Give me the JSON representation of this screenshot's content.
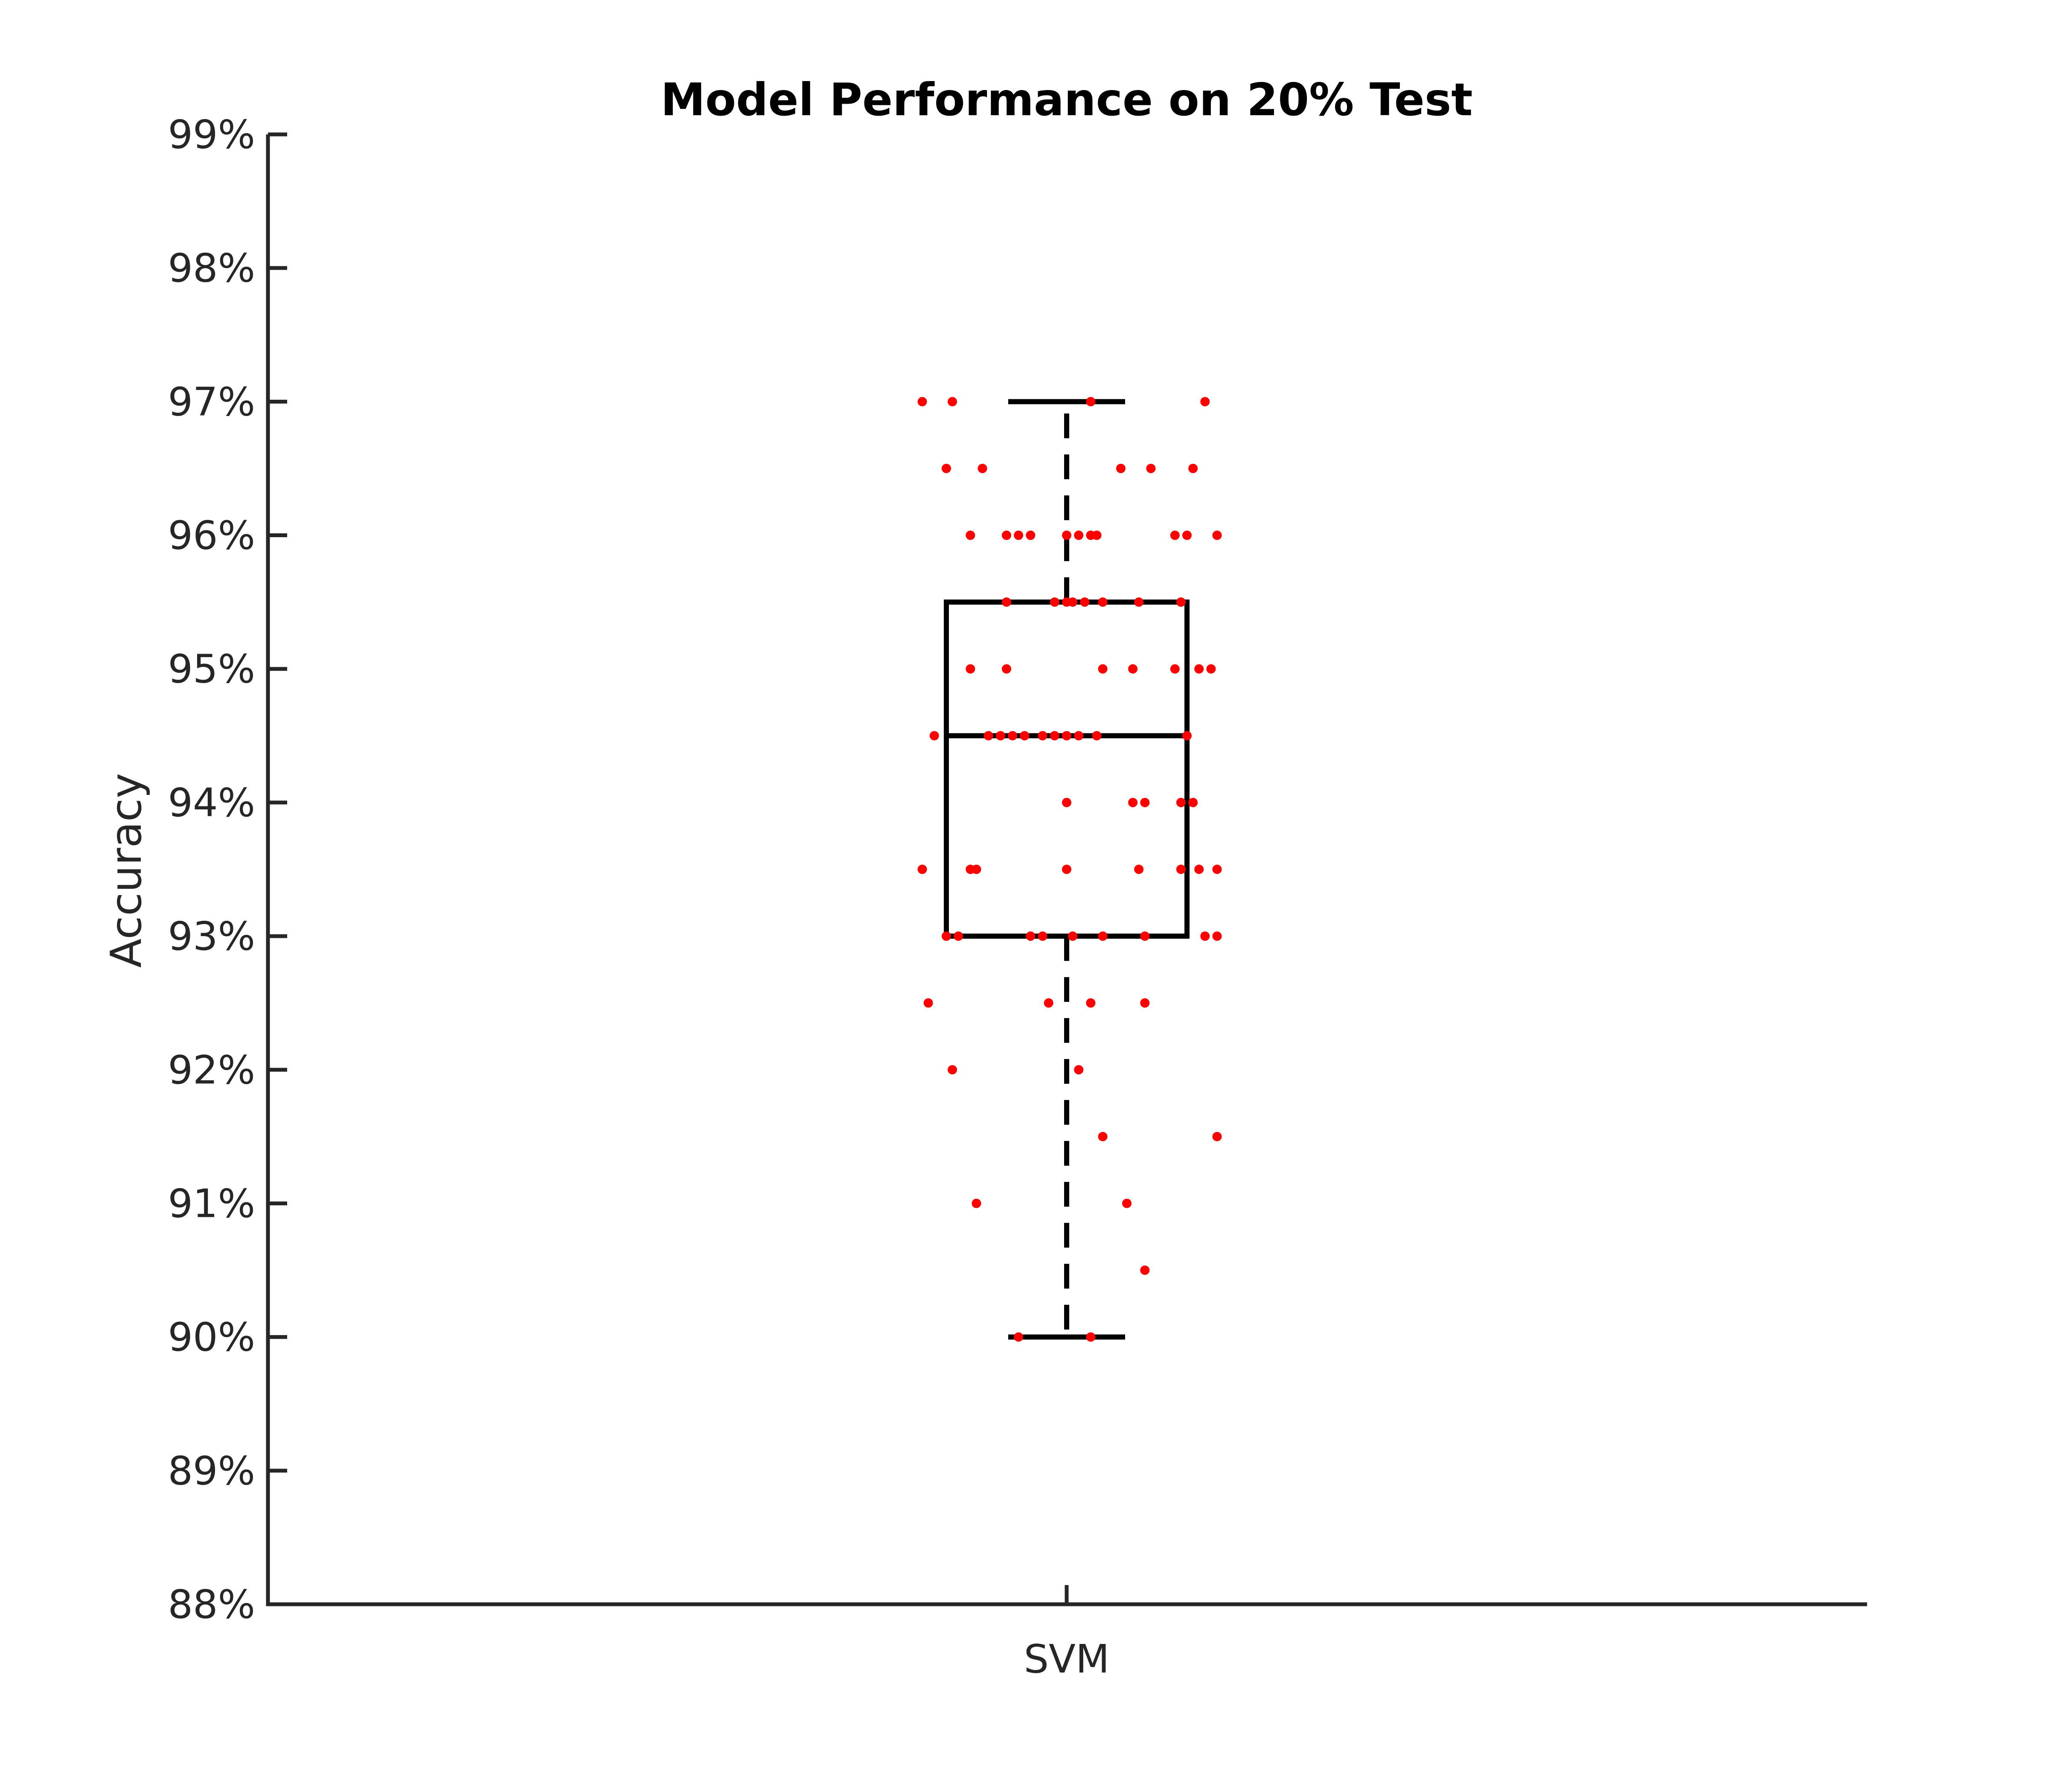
{
  "chart_data": {
    "type": "box",
    "title": "Model Performance on 20% Test",
    "xlabel": "",
    "ylabel": "Accuracy",
    "categories": [
      "SVM"
    ],
    "ylim": [
      88,
      99
    ],
    "yticks": [
      88,
      89,
      90,
      91,
      92,
      93,
      94,
      95,
      96,
      97,
      98,
      99
    ],
    "ytick_labels": [
      "88%",
      "89%",
      "90%",
      "91%",
      "92%",
      "93%",
      "94%",
      "95%",
      "96%",
      "97%",
      "98%",
      "99%"
    ],
    "grid": false,
    "box": {
      "category": "SVM",
      "whisker_low": 90,
      "q1": 93,
      "median": 94.5,
      "q3": 95.5,
      "whisker_high": 97
    },
    "points": [
      {
        "x": -0.12,
        "y": 97
      },
      {
        "x": -0.095,
        "y": 97
      },
      {
        "x": 0.02,
        "y": 97
      },
      {
        "x": 0.115,
        "y": 97
      },
      {
        "x": -0.1,
        "y": 96.5
      },
      {
        "x": -0.07,
        "y": 96.5
      },
      {
        "x": 0.045,
        "y": 96.5
      },
      {
        "x": 0.07,
        "y": 96.5
      },
      {
        "x": 0.105,
        "y": 96.5
      },
      {
        "x": -0.08,
        "y": 96
      },
      {
        "x": -0.05,
        "y": 96
      },
      {
        "x": -0.04,
        "y": 96
      },
      {
        "x": -0.03,
        "y": 96
      },
      {
        "x": 0.0,
        "y": 96
      },
      {
        "x": 0.01,
        "y": 96
      },
      {
        "x": 0.02,
        "y": 96
      },
      {
        "x": 0.025,
        "y": 96
      },
      {
        "x": 0.09,
        "y": 96
      },
      {
        "x": 0.1,
        "y": 96
      },
      {
        "x": 0.125,
        "y": 96
      },
      {
        "x": -0.05,
        "y": 95.5
      },
      {
        "x": -0.01,
        "y": 95.5
      },
      {
        "x": 0.0,
        "y": 95.5
      },
      {
        "x": 0.005,
        "y": 95.5
      },
      {
        "x": 0.015,
        "y": 95.5
      },
      {
        "x": 0.03,
        "y": 95.5
      },
      {
        "x": 0.06,
        "y": 95.5
      },
      {
        "x": 0.095,
        "y": 95.5
      },
      {
        "x": -0.08,
        "y": 95
      },
      {
        "x": -0.05,
        "y": 95
      },
      {
        "x": 0.03,
        "y": 95
      },
      {
        "x": 0.055,
        "y": 95
      },
      {
        "x": 0.09,
        "y": 95
      },
      {
        "x": 0.11,
        "y": 95
      },
      {
        "x": 0.12,
        "y": 95
      },
      {
        "x": -0.11,
        "y": 94.5
      },
      {
        "x": -0.065,
        "y": 94.5
      },
      {
        "x": -0.055,
        "y": 94.5
      },
      {
        "x": -0.045,
        "y": 94.5
      },
      {
        "x": -0.035,
        "y": 94.5
      },
      {
        "x": -0.02,
        "y": 94.5
      },
      {
        "x": -0.01,
        "y": 94.5
      },
      {
        "x": 0.0,
        "y": 94.5
      },
      {
        "x": 0.01,
        "y": 94.5
      },
      {
        "x": 0.025,
        "y": 94.5
      },
      {
        "x": 0.1,
        "y": 94.5
      },
      {
        "x": 0.0,
        "y": 94
      },
      {
        "x": 0.055,
        "y": 94
      },
      {
        "x": 0.065,
        "y": 94
      },
      {
        "x": 0.095,
        "y": 94
      },
      {
        "x": 0.105,
        "y": 94
      },
      {
        "x": -0.12,
        "y": 93.5
      },
      {
        "x": -0.08,
        "y": 93.5
      },
      {
        "x": -0.075,
        "y": 93.5
      },
      {
        "x": 0.0,
        "y": 93.5
      },
      {
        "x": 0.06,
        "y": 93.5
      },
      {
        "x": 0.095,
        "y": 93.5
      },
      {
        "x": 0.11,
        "y": 93.5
      },
      {
        "x": 0.125,
        "y": 93.5
      },
      {
        "x": -0.1,
        "y": 93
      },
      {
        "x": -0.09,
        "y": 93
      },
      {
        "x": -0.03,
        "y": 93
      },
      {
        "x": -0.02,
        "y": 93
      },
      {
        "x": 0.005,
        "y": 93
      },
      {
        "x": 0.03,
        "y": 93
      },
      {
        "x": 0.065,
        "y": 93
      },
      {
        "x": 0.115,
        "y": 93
      },
      {
        "x": 0.125,
        "y": 93
      },
      {
        "x": -0.115,
        "y": 92.5
      },
      {
        "x": -0.015,
        "y": 92.5
      },
      {
        "x": 0.02,
        "y": 92.5
      },
      {
        "x": 0.065,
        "y": 92.5
      },
      {
        "x": -0.095,
        "y": 92
      },
      {
        "x": 0.01,
        "y": 92
      },
      {
        "x": 0.03,
        "y": 91.5
      },
      {
        "x": 0.125,
        "y": 91.5
      },
      {
        "x": -0.075,
        "y": 91
      },
      {
        "x": 0.05,
        "y": 91
      },
      {
        "x": 0.065,
        "y": 90.5
      },
      {
        "x": -0.04,
        "y": 90
      },
      {
        "x": 0.02,
        "y": 90
      }
    ],
    "colors": {
      "box": "#000000",
      "points": "#ff0000",
      "axis": "#262626"
    }
  }
}
